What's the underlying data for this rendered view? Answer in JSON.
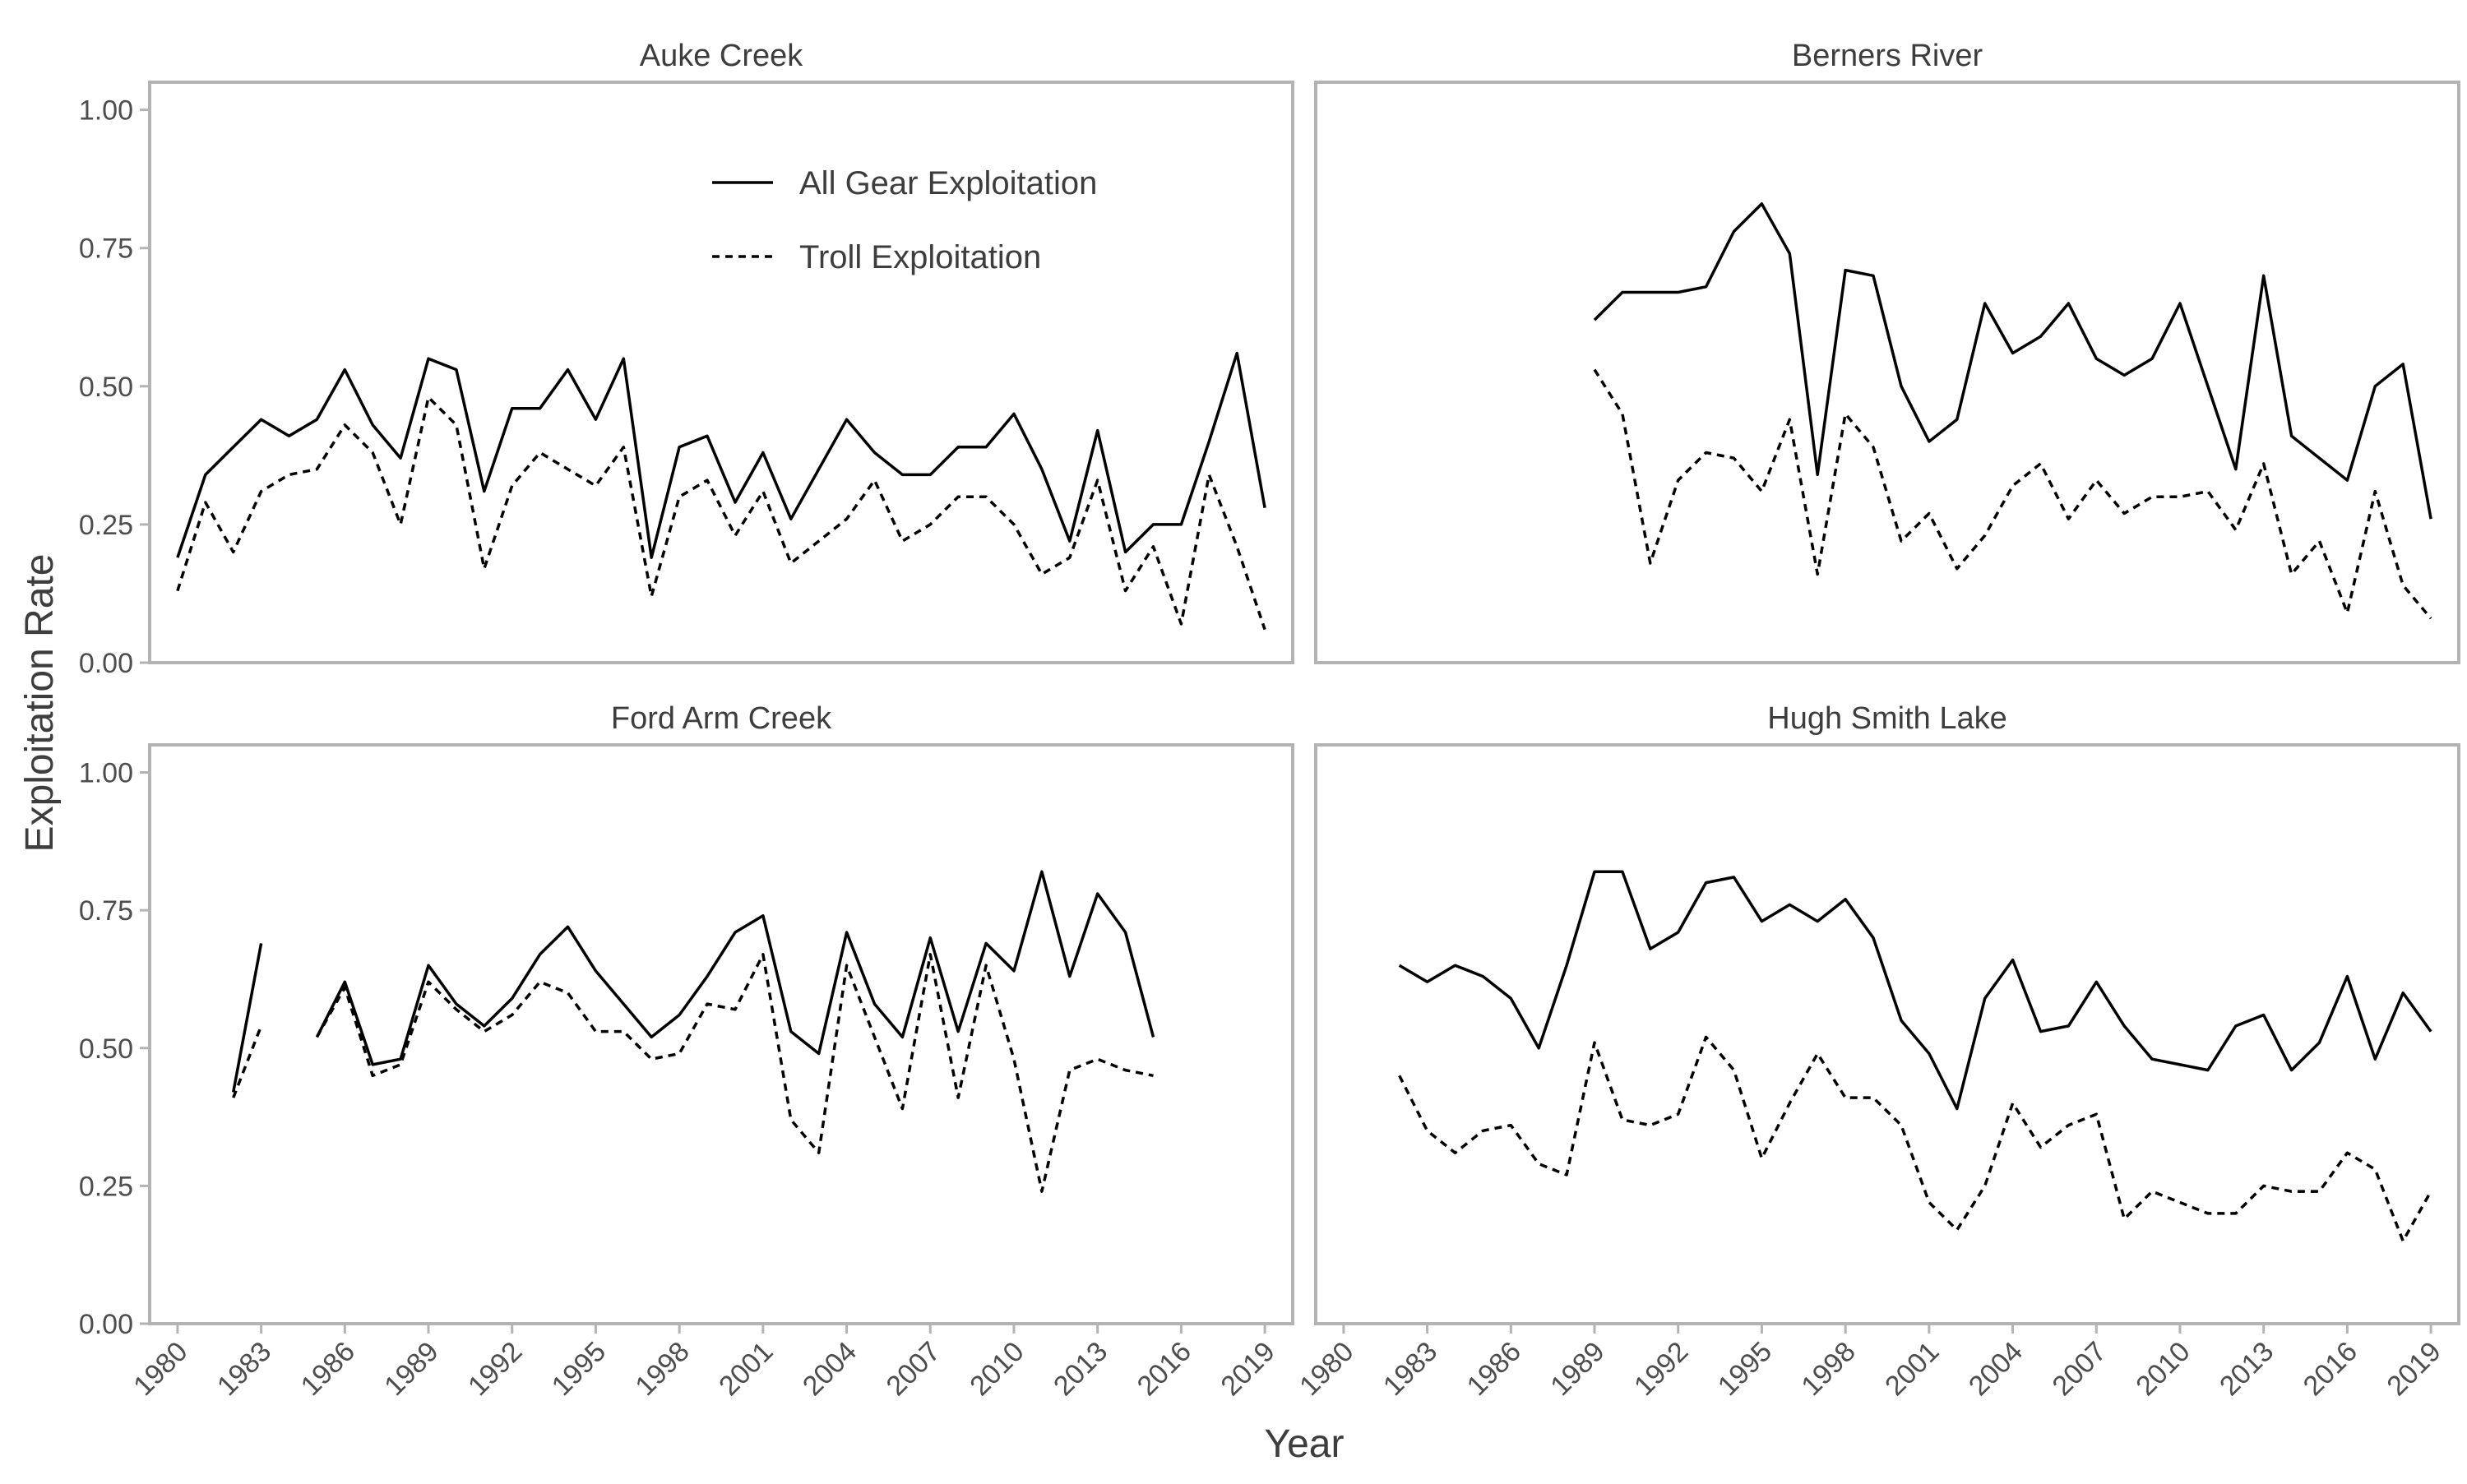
{
  "chart_data": {
    "type": "line",
    "xlabel": "Year",
    "ylabel": "Exploitation Rate",
    "xlim": [
      1979,
      2020
    ],
    "ylim": [
      0,
      1.05
    ],
    "x_ticks": [
      1980,
      1983,
      1986,
      1989,
      1992,
      1995,
      1998,
      2001,
      2004,
      2007,
      2010,
      2013,
      2016,
      2019
    ],
    "x_tick_labels": [
      "1980",
      "1983",
      "1986",
      "1989",
      "1992",
      "1995",
      "1998",
      "2001",
      "2004",
      "2007",
      "2010",
      "2013",
      "2016",
      "2019"
    ],
    "y_ticks": [
      0,
      0.25,
      0.5,
      0.75,
      1.0
    ],
    "y_tick_labels": [
      "0.00",
      "0.25",
      "0.50",
      "0.75",
      "1.00"
    ],
    "grid": false,
    "legend": {
      "placement": "top-center of first panel",
      "entries": [
        {
          "label": "All Gear Exploitation",
          "style": "solid"
        },
        {
          "label": "Troll Exploitation",
          "style": "dashed"
        }
      ]
    },
    "colors": {
      "line": "#000000",
      "frame": "#b3b3b3",
      "text": "#4d4d4d"
    },
    "panels": [
      {
        "title": "Auke Creek",
        "series": [
          {
            "name": "All Gear Exploitation",
            "style": "solid",
            "x": [
              1980,
              1981,
              1982,
              1983,
              1984,
              1985,
              1986,
              1987,
              1988,
              1989,
              1990,
              1991,
              1992,
              1993,
              1994,
              1995,
              1996,
              1997,
              1998,
              1999,
              2000,
              2001,
              2002,
              2003,
              2004,
              2005,
              2006,
              2007,
              2008,
              2009,
              2010,
              2011,
              2012,
              2013,
              2014,
              2015,
              2016,
              2017,
              2018,
              2019
            ],
            "y": [
              0.19,
              0.34,
              0.39,
              0.44,
              0.41,
              0.44,
              0.53,
              0.43,
              0.37,
              0.55,
              0.53,
              0.31,
              0.46,
              0.46,
              0.53,
              0.44,
              0.55,
              0.19,
              0.39,
              0.41,
              0.29,
              0.38,
              0.26,
              0.35,
              0.44,
              0.38,
              0.34,
              0.34,
              0.39,
              0.39,
              0.45,
              0.35,
              0.22,
              0.42,
              0.2,
              0.25,
              0.25,
              0.4,
              0.56,
              0.28
            ]
          },
          {
            "name": "Troll Exploitation",
            "style": "dashed",
            "x": [
              1980,
              1981,
              1982,
              1983,
              1984,
              1985,
              1986,
              1987,
              1988,
              1989,
              1990,
              1991,
              1992,
              1993,
              1994,
              1995,
              1996,
              1997,
              1998,
              1999,
              2000,
              2001,
              2002,
              2003,
              2004,
              2005,
              2006,
              2007,
              2008,
              2009,
              2010,
              2011,
              2012,
              2013,
              2014,
              2015,
              2016,
              2017,
              2018,
              2019
            ],
            "y": [
              0.13,
              0.29,
              0.2,
              0.31,
              0.34,
              0.35,
              0.43,
              0.38,
              0.25,
              0.48,
              0.43,
              0.17,
              0.32,
              0.38,
              0.35,
              0.32,
              0.39,
              0.12,
              0.3,
              0.33,
              0.23,
              0.31,
              0.18,
              0.22,
              0.26,
              0.33,
              0.22,
              0.25,
              0.3,
              0.3,
              0.25,
              0.16,
              0.19,
              0.33,
              0.13,
              0.21,
              0.07,
              0.34,
              0.21,
              0.06
            ]
          }
        ]
      },
      {
        "title": "Berners River",
        "series": [
          {
            "name": "All Gear Exploitation",
            "style": "solid",
            "x": [
              1989,
              1990,
              1991,
              1992,
              1993,
              1994,
              1995,
              1996,
              1997,
              1998,
              1999,
              2000,
              2001,
              2002,
              2003,
              2004,
              2005,
              2006,
              2007,
              2008,
              2009,
              2010,
              2011,
              2012,
              2013,
              2014,
              2015,
              2016,
              2017,
              2018,
              2019
            ],
            "y": [
              0.62,
              0.67,
              0.67,
              0.67,
              0.68,
              0.78,
              0.83,
              0.74,
              0.34,
              0.71,
              0.7,
              0.5,
              0.4,
              0.44,
              0.65,
              0.56,
              0.59,
              0.65,
              0.55,
              0.52,
              0.55,
              0.65,
              0.5,
              0.35,
              0.7,
              0.41,
              0.37,
              0.33,
              0.5,
              0.54,
              0.26
            ]
          },
          {
            "name": "Troll Exploitation",
            "style": "dashed",
            "x": [
              1989,
              1990,
              1991,
              1992,
              1993,
              1994,
              1995,
              1996,
              1997,
              1998,
              1999,
              2000,
              2001,
              2002,
              2003,
              2004,
              2005,
              2006,
              2007,
              2008,
              2009,
              2010,
              2011,
              2012,
              2013,
              2014,
              2015,
              2016,
              2017,
              2018,
              2019
            ],
            "y": [
              0.53,
              0.45,
              0.18,
              0.33,
              0.38,
              0.37,
              0.31,
              0.44,
              0.16,
              0.45,
              0.39,
              0.22,
              0.27,
              0.17,
              0.23,
              0.32,
              0.36,
              0.26,
              0.33,
              0.27,
              0.3,
              0.3,
              0.31,
              0.24,
              0.36,
              0.16,
              0.22,
              0.09,
              0.31,
              0.14,
              0.08
            ]
          }
        ]
      },
      {
        "title": "Ford Arm Creek",
        "series": [
          {
            "name": "All Gear Exploitation",
            "style": "solid",
            "x": [
              1982,
              1983,
              null,
              1985,
              1986,
              1987,
              1988,
              1989,
              1990,
              1991,
              1992,
              1993,
              1994,
              1995,
              1996,
              1997,
              1998,
              1999,
              2000,
              2001,
              2002,
              2003,
              2004,
              2005,
              2006,
              2007,
              2008,
              2009,
              2010,
              2011,
              2012,
              2013,
              2014,
              2015
            ],
            "y": [
              0.42,
              0.69,
              null,
              0.52,
              0.62,
              0.47,
              0.48,
              0.65,
              0.58,
              0.54,
              0.59,
              0.67,
              0.72,
              0.64,
              0.58,
              0.52,
              0.56,
              0.63,
              0.71,
              0.74,
              0.53,
              0.49,
              0.71,
              0.58,
              0.52,
              0.7,
              0.53,
              0.69,
              0.64,
              0.82,
              0.63,
              0.78,
              0.71,
              0.52
            ]
          },
          {
            "name": "Troll Exploitation",
            "style": "dashed",
            "x": [
              1982,
              1983,
              null,
              1985,
              1986,
              1987,
              1988,
              1989,
              1990,
              1991,
              1992,
              1993,
              1994,
              1995,
              1996,
              1997,
              1998,
              1999,
              2000,
              2001,
              2002,
              2003,
              2004,
              2005,
              2006,
              2007,
              2008,
              2009,
              2010,
              2011,
              2012,
              2013,
              2014,
              2015
            ],
            "y": [
              0.41,
              0.54,
              null,
              0.52,
              0.61,
              0.45,
              0.47,
              0.62,
              0.57,
              0.53,
              0.56,
              0.62,
              0.6,
              0.53,
              0.53,
              0.48,
              0.49,
              0.58,
              0.57,
              0.67,
              0.37,
              0.31,
              0.65,
              0.52,
              0.39,
              0.67,
              0.41,
              0.65,
              0.48,
              0.24,
              0.46,
              0.48,
              0.46,
              0.45
            ]
          }
        ]
      },
      {
        "title": "Hugh Smith Lake",
        "series": [
          {
            "name": "All Gear Exploitation",
            "style": "solid",
            "x": [
              1982,
              1983,
              1984,
              1985,
              1986,
              1987,
              1988,
              1989,
              1990,
              1991,
              1992,
              1993,
              1994,
              1995,
              1996,
              1997,
              1998,
              1999,
              2000,
              2001,
              2002,
              2003,
              2004,
              2005,
              2006,
              2007,
              2008,
              2009,
              2010,
              2011,
              2012,
              2013,
              2014,
              2015,
              2016,
              2017,
              2018,
              2019
            ],
            "y": [
              0.65,
              0.62,
              0.65,
              0.63,
              0.59,
              0.5,
              0.65,
              0.82,
              0.82,
              0.68,
              0.71,
              0.8,
              0.81,
              0.73,
              0.76,
              0.73,
              0.77,
              0.7,
              0.55,
              0.49,
              0.39,
              0.59,
              0.66,
              0.53,
              0.54,
              0.62,
              0.54,
              0.48,
              0.47,
              0.46,
              0.54,
              0.56,
              0.46,
              0.51,
              0.63,
              0.48,
              0.6,
              0.53
            ]
          },
          {
            "name": "Troll Exploitation",
            "style": "dashed",
            "x": [
              1982,
              1983,
              1984,
              1985,
              1986,
              1987,
              1988,
              1989,
              1990,
              1991,
              1992,
              1993,
              1994,
              1995,
              1996,
              1997,
              1998,
              1999,
              2000,
              2001,
              2002,
              2003,
              2004,
              2005,
              2006,
              2007,
              2008,
              2009,
              2010,
              2011,
              2012,
              2013,
              2014,
              2015,
              2016,
              2017,
              2018,
              2019
            ],
            "y": [
              0.45,
              0.35,
              0.31,
              0.35,
              0.36,
              0.29,
              0.27,
              0.51,
              0.37,
              0.36,
              0.38,
              0.52,
              0.46,
              0.3,
              0.4,
              0.49,
              0.41,
              0.41,
              0.36,
              0.22,
              0.17,
              0.25,
              0.4,
              0.32,
              0.36,
              0.38,
              0.19,
              0.24,
              0.22,
              0.2,
              0.2,
              0.25,
              0.24,
              0.24,
              0.31,
              0.28,
              0.15,
              0.24
            ]
          }
        ]
      }
    ]
  }
}
